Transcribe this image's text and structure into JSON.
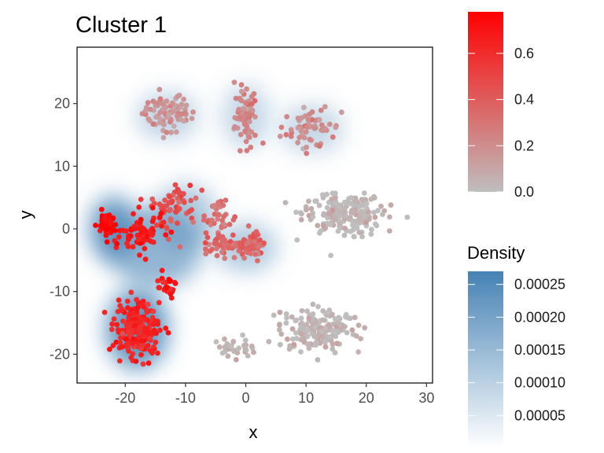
{
  "chart_data": {
    "type": "scatter",
    "title": "Cluster 1",
    "xlabel": "x",
    "ylabel": "y",
    "xlim": [
      -28,
      31
    ],
    "ylim": [
      -24.6,
      29
    ],
    "x_ticks": [
      "-20",
      "-10",
      "0",
      "10",
      "20",
      "30"
    ],
    "x_tick_values": [
      -20,
      -10,
      0,
      10,
      20,
      30
    ],
    "y_ticks": [
      "-20",
      "-10",
      "0",
      "10",
      "20"
    ],
    "y_tick_values": [
      -20,
      -10,
      0,
      10,
      20
    ],
    "grid": false,
    "colors": {
      "low": "#bebebe",
      "high": "#ff0000",
      "density_low": "#ffffff",
      "density_high": "#4682b4"
    },
    "color_legend": {
      "title": "",
      "labels": [
        "0.0",
        "0.2",
        "0.4",
        "0.6"
      ],
      "values": [
        0.0,
        0.2,
        0.4,
        0.6
      ],
      "range": [
        0.0,
        0.78
      ]
    },
    "density_legend": {
      "title": "Density",
      "labels": [
        "0.00005",
        "0.00010",
        "0.00015",
        "0.00020",
        "0.00025"
      ],
      "values": [
        5e-05,
        0.0001,
        0.00015,
        0.0002,
        0.00025
      ],
      "range": [
        0.0,
        0.00027
      ]
    },
    "groups": [
      {
        "center": [
          -13,
          18.5
        ],
        "spread": [
          3.5,
          2.5
        ],
        "count": 80,
        "value": 0.17
      },
      {
        "center": [
          0,
          18
        ],
        "spread": [
          1.5,
          4
        ],
        "count": 70,
        "value": 0.22
      },
      {
        "center": [
          11,
          16
        ],
        "spread": [
          4,
          2.5
        ],
        "count": 60,
        "value": 0.2
      },
      {
        "center": [
          16,
          2.5
        ],
        "spread": [
          5.5,
          2.8
        ],
        "count": 200,
        "value": 0.02
      },
      {
        "center": [
          12,
          -16
        ],
        "spread": [
          5.5,
          2.8
        ],
        "count": 170,
        "value": 0.02
      },
      {
        "center": [
          -2,
          -19
        ],
        "spread": [
          3,
          1.5
        ],
        "count": 30,
        "value": 0.04
      },
      {
        "center": [
          -12,
          4
        ],
        "spread": [
          3,
          3
        ],
        "count": 60,
        "value": 0.45
      },
      {
        "center": [
          -4.5,
          1.5
        ],
        "spread": [
          2.5,
          3
        ],
        "count": 40,
        "value": 0.32
      },
      {
        "center": [
          -3,
          -3
        ],
        "spread": [
          3.5,
          1.3
        ],
        "count": 45,
        "value": 0.38
      },
      {
        "center": [
          1,
          -2.5
        ],
        "spread": [
          1.5,
          1.8
        ],
        "count": 45,
        "value": 0.35
      },
      {
        "center": [
          -23,
          0.5
        ],
        "spread": [
          1.3,
          1.8
        ],
        "count": 45,
        "value": 0.75
      },
      {
        "center": [
          -17,
          -1
        ],
        "spread": [
          3,
          2.5
        ],
        "count": 70,
        "value": 0.68
      },
      {
        "center": [
          -18,
          -16
        ],
        "spread": [
          3,
          3.5
        ],
        "count": 190,
        "value": 0.62
      },
      {
        "center": [
          -13,
          -9
        ],
        "spread": [
          1.5,
          2
        ],
        "count": 25,
        "value": 0.7
      }
    ],
    "density_centers": [
      {
        "center": [
          -18,
          -16
        ],
        "spread": [
          4,
          5
        ],
        "value": 0.00027
      },
      {
        "center": [
          -22,
          0
        ],
        "spread": [
          3,
          4
        ],
        "value": 0.00026
      },
      {
        "center": [
          -15,
          -3
        ],
        "spread": [
          6,
          5
        ],
        "value": 0.00015
      },
      {
        "center": [
          -10,
          2
        ],
        "spread": [
          4,
          4
        ],
        "value": 8e-05
      },
      {
        "center": [
          0,
          -3
        ],
        "spread": [
          4,
          3
        ],
        "value": 8e-05
      },
      {
        "center": [
          -13,
          18
        ],
        "spread": [
          4,
          3
        ],
        "value": 4e-05
      },
      {
        "center": [
          0,
          18
        ],
        "spread": [
          3,
          4
        ],
        "value": 3e-05
      },
      {
        "center": [
          11,
          16
        ],
        "spread": [
          4,
          3
        ],
        "value": 3e-05
      }
    ]
  }
}
